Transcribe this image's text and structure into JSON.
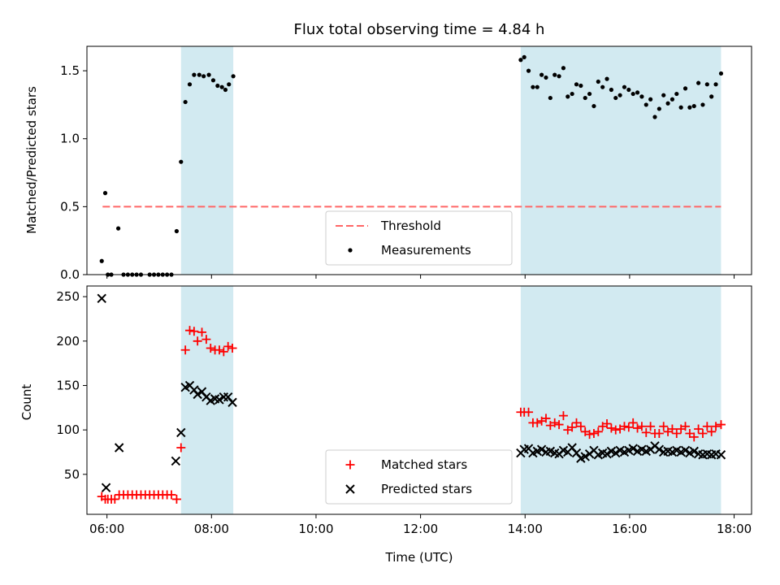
{
  "colors": {
    "shade": "#add8e6",
    "threshold": "#ff6666",
    "measurement": "#000000",
    "matched": "#ff0000",
    "predicted": "#000000"
  },
  "chart_data": [
    {
      "type": "scatter",
      "title": "Flux total observing time = 4.84 h",
      "xlabel": "",
      "ylabel": "Matched/Predicted stars",
      "xlim": [
        "05:37",
        "18:20"
      ],
      "ylim": [
        0,
        1.68
      ],
      "x_ticks": [
        "06:00",
        "08:00",
        "10:00",
        "12:00",
        "14:00",
        "16:00",
        "18:00"
      ],
      "y_ticks": [
        "0.0",
        "0.5",
        "1.0",
        "1.5"
      ],
      "shaded_intervals": [
        [
          "07:25",
          "08:25"
        ],
        [
          "13:55",
          "17:45"
        ]
      ],
      "threshold": {
        "label": "Threshold",
        "value": 0.5,
        "x_range": [
          "05:55",
          "17:45"
        ],
        "style": "dashed"
      },
      "legend": {
        "placement": "lower center",
        "entries": [
          "Threshold",
          "Measurements"
        ]
      },
      "series": [
        {
          "name": "Measurements",
          "points": [
            [
              "05:54",
              0.1
            ],
            [
              "05:58",
              0.6
            ],
            [
              "06:01",
              0.0
            ],
            [
              "06:05",
              0.0
            ],
            [
              "06:13",
              0.34
            ],
            [
              "06:19",
              0.0
            ],
            [
              "06:24",
              0.0
            ],
            [
              "06:29",
              0.0
            ],
            [
              "06:34",
              0.0
            ],
            [
              "06:39",
              0.0
            ],
            [
              "06:49",
              0.0
            ],
            [
              "06:54",
              0.0
            ],
            [
              "06:59",
              0.0
            ],
            [
              "07:04",
              0.0
            ],
            [
              "07:09",
              0.0
            ],
            [
              "07:14",
              0.0
            ],
            [
              "07:20",
              0.32
            ],
            [
              "07:25",
              0.83
            ],
            [
              "07:30",
              1.27
            ],
            [
              "07:35",
              1.4
            ],
            [
              "07:40",
              1.47
            ],
            [
              "07:46",
              1.47
            ],
            [
              "07:51",
              1.46
            ],
            [
              "07:57",
              1.47
            ],
            [
              "08:02",
              1.43
            ],
            [
              "08:07",
              1.39
            ],
            [
              "08:12",
              1.38
            ],
            [
              "08:16",
              1.36
            ],
            [
              "08:20",
              1.4
            ],
            [
              "08:25",
              1.46
            ],
            [
              "13:55",
              1.58
            ],
            [
              "13:59",
              1.6
            ],
            [
              "14:04",
              1.5
            ],
            [
              "14:09",
              1.38
            ],
            [
              "14:14",
              1.38
            ],
            [
              "14:19",
              1.47
            ],
            [
              "14:24",
              1.45
            ],
            [
              "14:29",
              1.3
            ],
            [
              "14:34",
              1.47
            ],
            [
              "14:39",
              1.46
            ],
            [
              "14:44",
              1.52
            ],
            [
              "14:49",
              1.31
            ],
            [
              "14:54",
              1.33
            ],
            [
              "14:59",
              1.4
            ],
            [
              "15:04",
              1.39
            ],
            [
              "15:09",
              1.3
            ],
            [
              "15:14",
              1.33
            ],
            [
              "15:19",
              1.24
            ],
            [
              "15:24",
              1.42
            ],
            [
              "15:29",
              1.38
            ],
            [
              "15:34",
              1.44
            ],
            [
              "15:39",
              1.36
            ],
            [
              "15:44",
              1.3
            ],
            [
              "15:49",
              1.32
            ],
            [
              "15:54",
              1.38
            ],
            [
              "15:59",
              1.36
            ],
            [
              "16:04",
              1.33
            ],
            [
              "16:09",
              1.34
            ],
            [
              "16:14",
              1.31
            ],
            [
              "16:19",
              1.25
            ],
            [
              "16:24",
              1.29
            ],
            [
              "16:29",
              1.16
            ],
            [
              "16:34",
              1.22
            ],
            [
              "16:39",
              1.32
            ],
            [
              "16:44",
              1.26
            ],
            [
              "16:49",
              1.29
            ],
            [
              "16:54",
              1.33
            ],
            [
              "16:59",
              1.23
            ],
            [
              "17:04",
              1.37
            ],
            [
              "17:09",
              1.23
            ],
            [
              "17:14",
              1.24
            ],
            [
              "17:19",
              1.41
            ],
            [
              "17:24",
              1.25
            ],
            [
              "17:29",
              1.4
            ],
            [
              "17:34",
              1.31
            ],
            [
              "17:39",
              1.4
            ],
            [
              "17:45",
              1.48
            ]
          ]
        }
      ]
    },
    {
      "type": "scatter",
      "title": "",
      "xlabel": "Time (UTC)",
      "ylabel": "Count",
      "xlim": [
        "05:37",
        "18:20"
      ],
      "ylim": [
        5,
        262
      ],
      "x_ticks": [
        "06:00",
        "08:00",
        "10:00",
        "12:00",
        "14:00",
        "16:00",
        "18:00"
      ],
      "y_ticks": [
        "50",
        "100",
        "150",
        "200",
        "250"
      ],
      "shaded_intervals": [
        [
          "07:25",
          "08:25"
        ],
        [
          "13:55",
          "17:45"
        ]
      ],
      "legend": {
        "placement": "lower center",
        "entries": [
          "Matched stars",
          "Predicted stars"
        ]
      },
      "series": [
        {
          "name": "Matched stars",
          "marker": "plus",
          "points": [
            [
              "05:54",
              25
            ],
            [
              "05:58",
              22
            ],
            [
              "06:01",
              22
            ],
            [
              "06:05",
              22
            ],
            [
              "06:09",
              22
            ],
            [
              "06:14",
              27
            ],
            [
              "06:19",
              27
            ],
            [
              "06:24",
              27
            ],
            [
              "06:29",
              27
            ],
            [
              "06:34",
              27
            ],
            [
              "06:39",
              27
            ],
            [
              "06:44",
              27
            ],
            [
              "06:49",
              27
            ],
            [
              "06:54",
              27
            ],
            [
              "06:59",
              27
            ],
            [
              "07:04",
              27
            ],
            [
              "07:09",
              27
            ],
            [
              "07:14",
              27
            ],
            [
              "07:20",
              22
            ],
            [
              "07:25",
              80
            ],
            [
              "07:30",
              190
            ],
            [
              "07:35",
              212
            ],
            [
              "07:40",
              211
            ],
            [
              "07:44",
              200
            ],
            [
              "07:49",
              210
            ],
            [
              "07:54",
              202
            ],
            [
              "07:59",
              192
            ],
            [
              "08:04",
              190
            ],
            [
              "08:09",
              190
            ],
            [
              "08:14",
              188
            ],
            [
              "08:19",
              194
            ],
            [
              "08:24",
              192
            ],
            [
              "13:55",
              120
            ],
            [
              "13:59",
              120
            ],
            [
              "14:04",
              120
            ],
            [
              "14:09",
              108
            ],
            [
              "14:14",
              108
            ],
            [
              "14:19",
              110
            ],
            [
              "14:24",
              113
            ],
            [
              "14:29",
              105
            ],
            [
              "14:34",
              108
            ],
            [
              "14:39",
              106
            ],
            [
              "14:44",
              116
            ],
            [
              "14:49",
              100
            ],
            [
              "14:54",
              103
            ],
            [
              "14:59",
              108
            ],
            [
              "15:04",
              104
            ],
            [
              "15:09",
              98
            ],
            [
              "15:14",
              95
            ],
            [
              "15:19",
              96
            ],
            [
              "15:24",
              98
            ],
            [
              "15:29",
              104
            ],
            [
              "15:34",
              107
            ],
            [
              "15:39",
              102
            ],
            [
              "15:44",
              100
            ],
            [
              "15:49",
              101
            ],
            [
              "15:54",
              104
            ],
            [
              "15:59",
              103
            ],
            [
              "16:04",
              108
            ],
            [
              "16:09",
              102
            ],
            [
              "16:14",
              104
            ],
            [
              "16:19",
              97
            ],
            [
              "16:24",
              104
            ],
            [
              "16:29",
              96
            ],
            [
              "16:34",
              96
            ],
            [
              "16:39",
              104
            ],
            [
              "16:44",
              98
            ],
            [
              "16:49",
              101
            ],
            [
              "16:54",
              96
            ],
            [
              "16:59",
              101
            ],
            [
              "17:04",
              104
            ],
            [
              "17:09",
              96
            ],
            [
              "17:14",
              92
            ],
            [
              "17:19",
              101
            ],
            [
              "17:24",
              96
            ],
            [
              "17:29",
              104
            ],
            [
              "17:34",
              98
            ],
            [
              "17:39",
              104
            ],
            [
              "17:45",
              106
            ]
          ]
        },
        {
          "name": "Predicted stars",
          "marker": "x",
          "points": [
            [
              "05:54",
              248
            ],
            [
              "05:59",
              35
            ],
            [
              "06:14",
              80
            ],
            [
              "07:19",
              65
            ],
            [
              "07:25",
              97
            ],
            [
              "07:30",
              148
            ],
            [
              "07:35",
              150
            ],
            [
              "07:40",
              145
            ],
            [
              "07:44",
              140
            ],
            [
              "07:49",
              143
            ],
            [
              "07:54",
              137
            ],
            [
              "07:59",
              133
            ],
            [
              "08:04",
              135
            ],
            [
              "08:09",
              134
            ],
            [
              "08:14",
              137
            ],
            [
              "08:19",
              137
            ],
            [
              "08:24",
              131
            ],
            [
              "13:55",
              74
            ],
            [
              "13:59",
              78
            ],
            [
              "14:04",
              79
            ],
            [
              "14:09",
              74
            ],
            [
              "14:14",
              76
            ],
            [
              "14:19",
              78
            ],
            [
              "14:24",
              75
            ],
            [
              "14:29",
              76
            ],
            [
              "14:34",
              74
            ],
            [
              "14:39",
              73
            ],
            [
              "14:44",
              77
            ],
            [
              "14:49",
              75
            ],
            [
              "14:54",
              80
            ],
            [
              "14:59",
              74
            ],
            [
              "15:04",
              68
            ],
            [
              "15:09",
              70
            ],
            [
              "15:14",
              73
            ],
            [
              "15:19",
              77
            ],
            [
              "15:24",
              72
            ],
            [
              "15:29",
              74
            ],
            [
              "15:34",
              73
            ],
            [
              "15:39",
              76
            ],
            [
              "15:44",
              74
            ],
            [
              "15:49",
              77
            ],
            [
              "15:54",
              75
            ],
            [
              "15:59",
              77
            ],
            [
              "16:04",
              79
            ],
            [
              "16:09",
              76
            ],
            [
              "16:14",
              78
            ],
            [
              "16:19",
              76
            ],
            [
              "16:24",
              78
            ],
            [
              "16:29",
              82
            ],
            [
              "16:34",
              78
            ],
            [
              "16:39",
              75
            ],
            [
              "16:44",
              76
            ],
            [
              "16:49",
              75
            ],
            [
              "16:54",
              77
            ],
            [
              "16:59",
              75
            ],
            [
              "17:04",
              77
            ],
            [
              "17:09",
              74
            ],
            [
              "17:14",
              76
            ],
            [
              "17:19",
              73
            ],
            [
              "17:24",
              72
            ],
            [
              "17:29",
              73
            ],
            [
              "17:34",
              72
            ],
            [
              "17:39",
              73
            ],
            [
              "17:45",
              72
            ]
          ]
        }
      ]
    }
  ]
}
